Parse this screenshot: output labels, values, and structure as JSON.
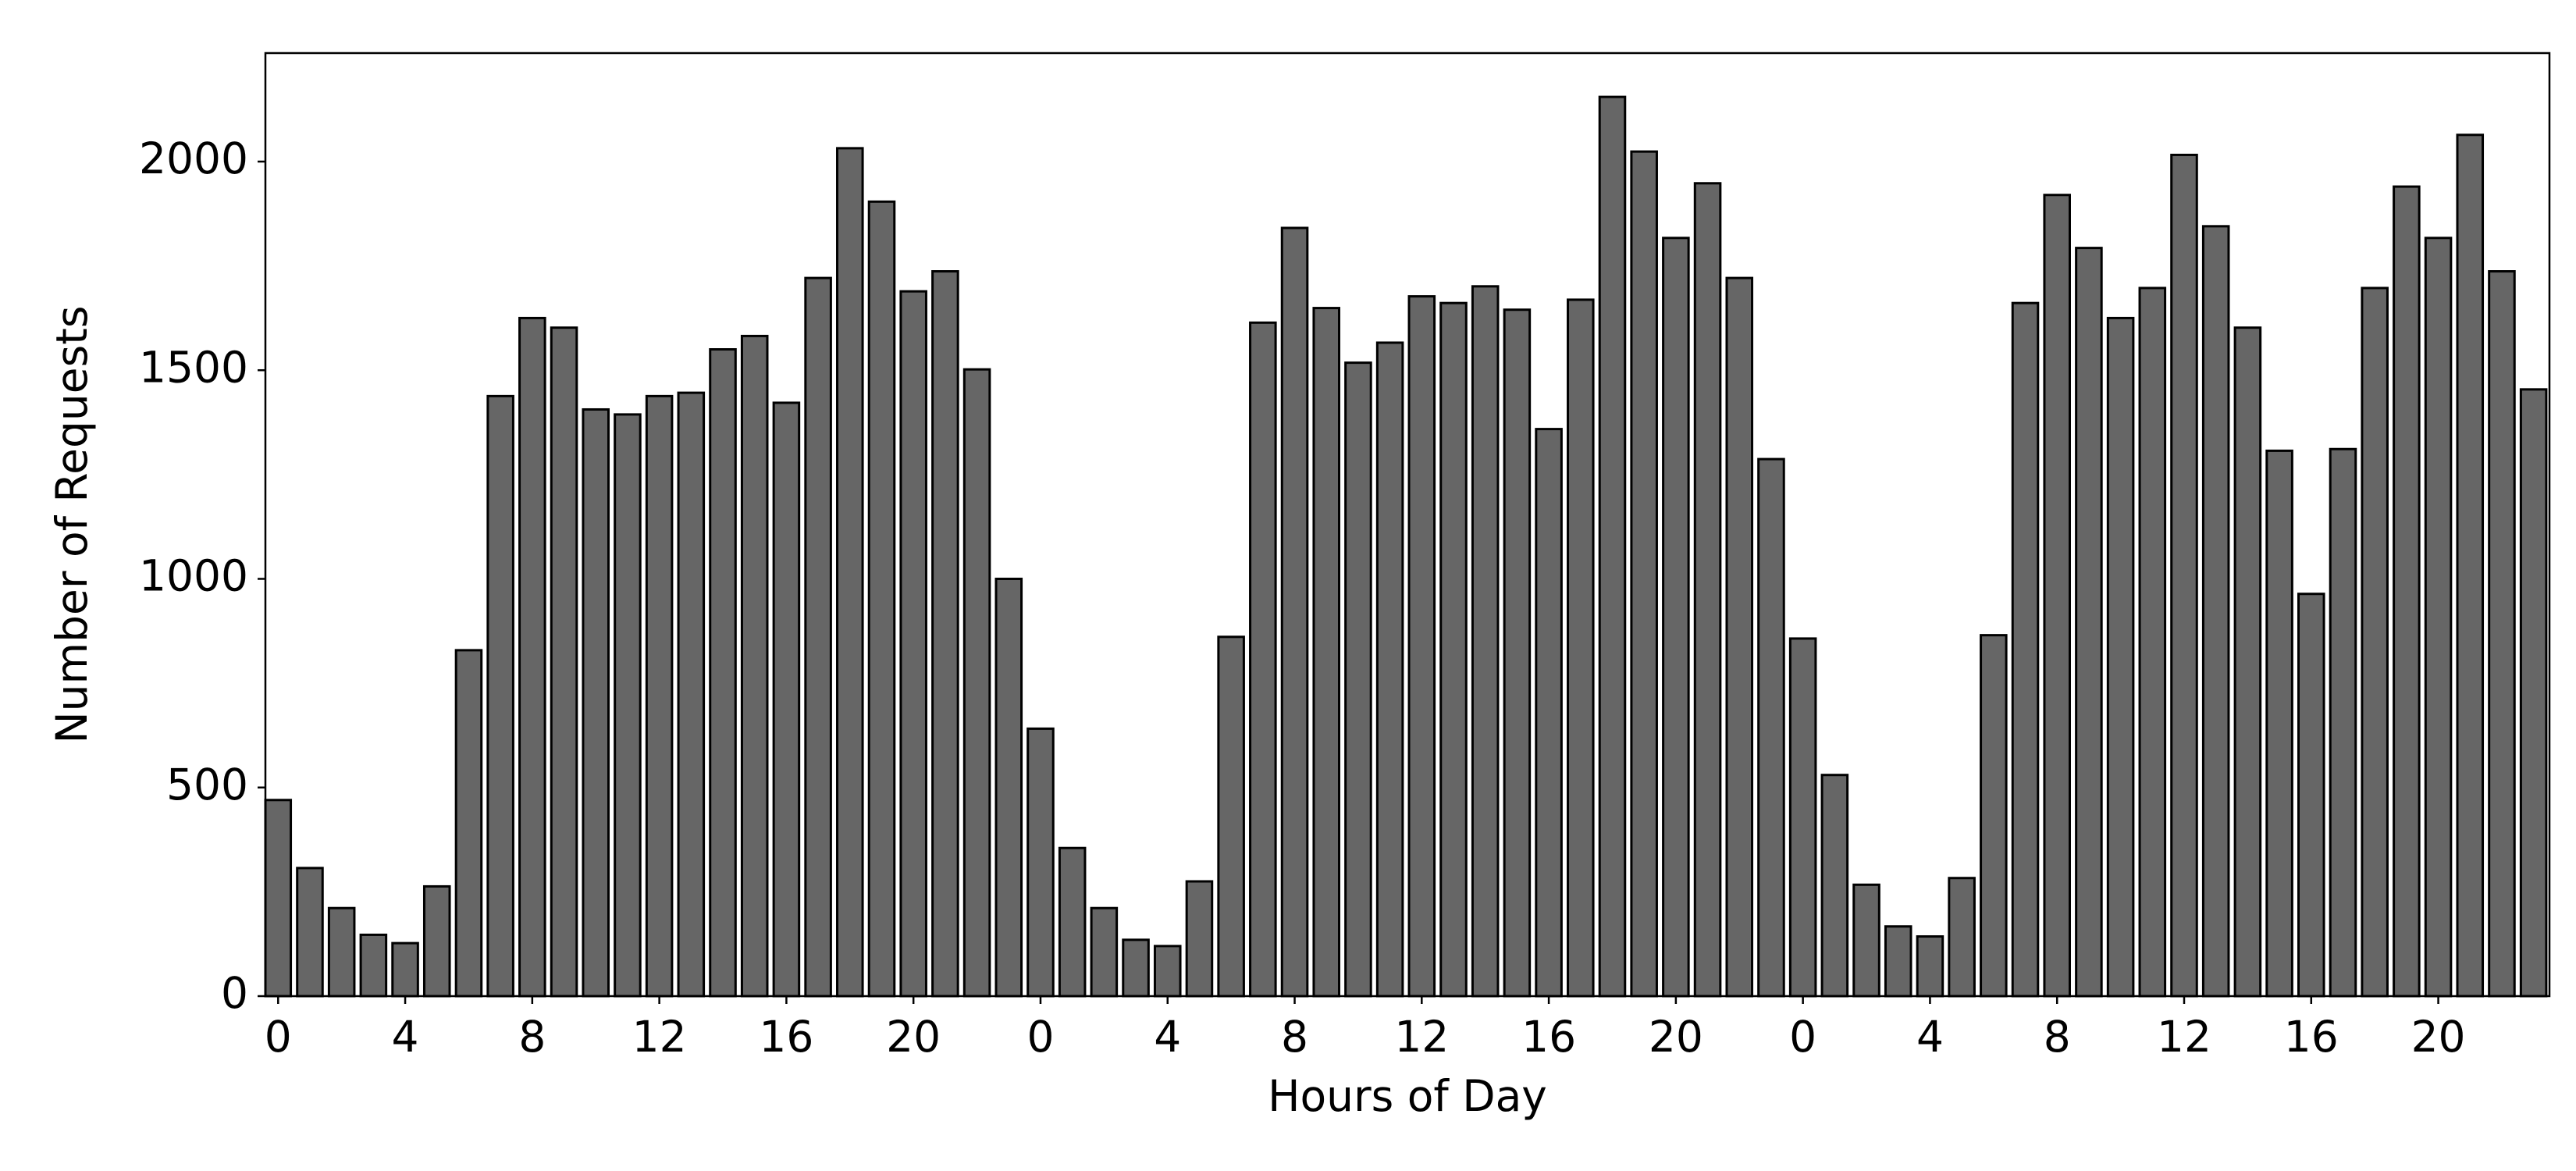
{
  "chart_data": {
    "type": "bar",
    "xlabel": "Hours of Day",
    "ylabel": "Number of Requests",
    "x": [
      0,
      1,
      2,
      3,
      4,
      5,
      6,
      7,
      8,
      9,
      10,
      11,
      12,
      13,
      14,
      15,
      16,
      17,
      18,
      19,
      20,
      21,
      22,
      23,
      24,
      25,
      26,
      27,
      28,
      29,
      30,
      31,
      32,
      33,
      34,
      35,
      36,
      37,
      38,
      39,
      40,
      41,
      42,
      43,
      44,
      45,
      46,
      47,
      48,
      49,
      50,
      51,
      52,
      53,
      54,
      55,
      56,
      57,
      58,
      59,
      60,
      61,
      62,
      63,
      64,
      65,
      66,
      67,
      68,
      69,
      70,
      71
    ],
    "values": [
      470,
      307,
      211,
      147,
      127,
      263,
      829,
      1438,
      1625,
      1602,
      1406,
      1394,
      1438,
      1446,
      1550,
      1582,
      1422,
      1721,
      2032,
      1904,
      1689,
      1737,
      1502,
      1000,
      641,
      355,
      211,
      135,
      120,
      275,
      861,
      1614,
      1841,
      1649,
      1518,
      1566,
      1677,
      1661,
      1701,
      1645,
      1359,
      1669,
      2155,
      2024,
      1817,
      1948,
      1721,
      1287,
      857,
      530,
      267,
      167,
      143,
      283,
      865,
      1661,
      1920,
      1793,
      1625,
      1697,
      2016,
      1845,
      1602,
      1307,
      964,
      1311,
      1697,
      1940,
      1817,
      2064,
      1737,
      1454
    ],
    "color": "#666666",
    "edgecolor": "#000000",
    "xlim": [
      -0.4,
      71.5
    ],
    "ylim": [
      0,
      2260
    ],
    "xticks": [
      0,
      4,
      8,
      12,
      16,
      20,
      {
        "value": 24,
        "label": "0"
      },
      {
        "value": 28,
        "label": "4"
      },
      {
        "value": 32,
        "label": "8"
      },
      {
        "value": 36,
        "label": "12"
      },
      {
        "value": 40,
        "label": "16"
      },
      {
        "value": 44,
        "label": "20"
      },
      {
        "value": 48,
        "label": "0"
      },
      {
        "value": 52,
        "label": "4"
      },
      {
        "value": 56,
        "label": "8"
      },
      {
        "value": 60,
        "label": "12"
      },
      {
        "value": 64,
        "label": "16"
      },
      {
        "value": 68,
        "label": "20"
      }
    ],
    "yticks": [
      0,
      500,
      1000,
      1500,
      2000
    ],
    "grid": false
  }
}
